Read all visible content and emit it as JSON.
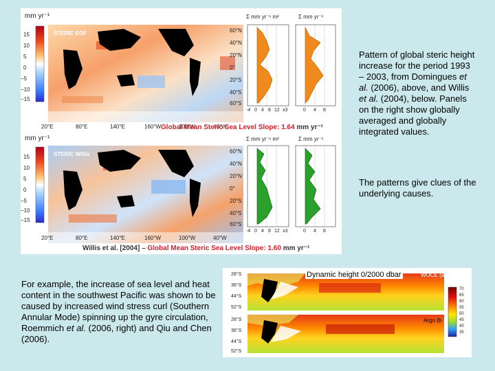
{
  "top_panel": {
    "unit_label": "mm yr⁻¹",
    "colorbar_ticks": [
      "15",
      "10",
      "5",
      "0",
      "−5",
      "−10",
      "−15"
    ],
    "upper_map": {
      "title": "STERIC EOF",
      "lat_labels": [
        "60°N",
        "40°N",
        "20°N",
        "0°",
        "20°S",
        "40°S",
        "60°S"
      ],
      "lon_labels": [
        "20°E",
        "80°E",
        "140°E",
        "160°W",
        "100°W",
        "40°W"
      ],
      "profile_headers": [
        "Σ mm yr⁻¹ m²",
        "Σ mm yr⁻¹"
      ],
      "profile_axis_left": [
        "-4",
        "0",
        "4",
        "8",
        "12",
        "x3"
      ],
      "profile_axis_right": [
        "0",
        "4",
        "8"
      ],
      "caption_prefix": "Global Mean Steric Sea Level Slope:",
      "caption_value": "1.64",
      "caption_unit": "mm yr⁻¹"
    },
    "lower_map": {
      "title": "STERIC Willis",
      "lat_labels": [
        "60°N",
        "40°N",
        "20°N",
        "0°",
        "20°S",
        "40°S",
        "60°S"
      ],
      "lon_labels": [
        "20°E",
        "80°E",
        "140°E",
        "160°W",
        "100°W",
        "40°W"
      ],
      "profile_headers": [
        "Σ mm yr⁻¹ m²",
        "Σ mm yr⁻¹"
      ],
      "profile_axis_left": [
        "-4",
        "0",
        "4",
        "8",
        "12",
        "x3"
      ],
      "profile_axis_right": [
        "0",
        "4",
        "8"
      ],
      "caption_source": "Willis et al. [2004]",
      "caption_dash": "–",
      "caption_prefix": "Global Mean Steric Sea Level Slope:",
      "caption_value": "1.60",
      "caption_unit": "mm yr⁻¹"
    }
  },
  "bottom_panel": {
    "title": "Dynamic height 0/2000 dbar",
    "upper_tag": "WOCE (a",
    "lower_tag": "Argo (b",
    "lat_labels": [
      "28°S",
      "36°S",
      "44°S",
      "52°S"
    ],
    "colorbar_ticks": [
      "70",
      "65",
      "60",
      "55",
      "50",
      "45",
      "40",
      "35"
    ]
  },
  "text": {
    "right_paragraph_1": {
      "before_1": "Pattern of global steric height increase for the period 1993 – 2003, from Domingues ",
      "etal_1": "et al.",
      "mid": " (2006), above, and Willis ",
      "etal_2": "et al.",
      "after": " (2004), below. Panels on the right show globally averaged and globally integrated values."
    },
    "right_paragraph_2": "The patterns give clues of the underlying causes.",
    "left_paragraph": {
      "before": "For example, the increase of sea level and heat content in the southwest Pacific was shown to be caused by increased wind stress curl (Southern Annular Mode) spinning up the gyre circulation, Roemmich ",
      "etal": "et al.",
      "after": " (2006, right) and Qiu and Chen (2006)."
    }
  },
  "colors": {
    "background": "#cbe9ec",
    "caption_red": "#d0202a",
    "profile_orange": "#f08a1e",
    "profile_green": "#2ca02c"
  }
}
